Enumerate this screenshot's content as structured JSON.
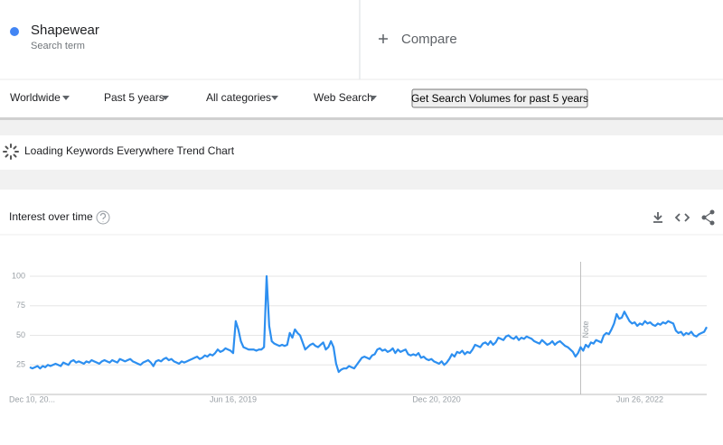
{
  "header": {
    "term_label": "Search term",
    "compare": "Compare"
  },
  "filters": [
    "Worldwide",
    "Past 5 years",
    "All categories",
    "Web Search"
  ],
  "button": "Get Search Volumes for past 5 years",
  "loading": "Loading Keywords Everywhere Trend Chart",
  "card_title": "Interest over time",
  "chart_data": {
    "type": "line",
    "annotation": "Note",
    "categories": [
      "Dec 10, 20...",
      null,
      null,
      null,
      null,
      null,
      null,
      null,
      null,
      null,
      null,
      null,
      null,
      null,
      null,
      null,
      null,
      null,
      null,
      null,
      null,
      null,
      null,
      null,
      null,
      null,
      null,
      null,
      null,
      null,
      null,
      null,
      null,
      null,
      null,
      null,
      null,
      null,
      null,
      null,
      null,
      null,
      null,
      null,
      null,
      null,
      null,
      null,
      null,
      null,
      null,
      null,
      null,
      null,
      null,
      null,
      null,
      null,
      null,
      null,
      null,
      null,
      null,
      null,
      null,
      null,
      null,
      null,
      null,
      null,
      null,
      null,
      null,
      null,
      null,
      null,
      null,
      null,
      null,
      "Jun 16, 2019",
      null,
      null,
      null,
      null,
      null,
      null,
      null,
      null,
      null,
      null,
      null,
      null,
      null,
      null,
      null,
      null,
      null,
      null,
      null,
      null,
      null,
      null,
      null,
      null,
      null,
      null,
      null,
      null,
      null,
      null,
      null,
      null,
      null,
      null,
      null,
      null,
      null,
      null,
      null,
      null,
      null,
      null,
      null,
      null,
      null,
      null,
      null,
      null,
      null,
      null,
      null,
      null,
      null,
      null,
      null,
      null,
      null,
      null,
      null,
      null,
      null,
      null,
      null,
      null,
      null,
      null,
      null,
      null,
      null,
      null,
      null,
      null,
      null,
      null,
      null,
      null,
      null,
      null,
      "Dec 20, 2020",
      null,
      null,
      null,
      null,
      null,
      null,
      null,
      null,
      null,
      null,
      null,
      null,
      null,
      null,
      null,
      null,
      null,
      null,
      null,
      null,
      null,
      null,
      null,
      null,
      null,
      null,
      null,
      null,
      null,
      null,
      null,
      null,
      null,
      null,
      null,
      null,
      null,
      null,
      null,
      null,
      null,
      null,
      null,
      null,
      null,
      null,
      null,
      null,
      null,
      null,
      null,
      null,
      null,
      null,
      null,
      null,
      null,
      null,
      null,
      null,
      null,
      null,
      null,
      null,
      null,
      null,
      null,
      null,
      null,
      null,
      null,
      null,
      null,
      null,
      null,
      null,
      null,
      null,
      "Jun 26, 2022",
      null,
      null,
      null,
      null,
      null,
      null,
      null,
      null,
      null,
      null,
      null,
      null,
      null,
      null,
      null,
      null,
      null,
      null,
      null,
      null,
      null,
      null,
      null,
      null,
      null,
      null
    ],
    "series": [
      {
        "name": "Shapewear",
        "color": "#2d8ff0",
        "values": [
          23,
          22,
          23,
          24,
          22,
          24,
          23,
          25,
          24,
          25,
          26,
          25,
          24,
          27,
          26,
          25,
          28,
          29,
          27,
          28,
          27,
          26,
          28,
          27,
          29,
          28,
          27,
          26,
          28,
          29,
          28,
          27,
          29,
          28,
          27,
          30,
          29,
          28,
          29,
          30,
          28,
          27,
          26,
          25,
          27,
          28,
          29,
          27,
          24,
          28,
          29,
          28,
          30,
          31,
          29,
          30,
          28,
          27,
          26,
          28,
          27,
          28,
          29,
          30,
          31,
          32,
          30,
          31,
          33,
          32,
          34,
          33,
          35,
          38,
          36,
          37,
          39,
          38,
          37,
          35,
          62,
          55,
          45,
          40,
          39,
          38,
          38,
          38,
          37,
          38,
          38,
          40,
          100,
          58,
          45,
          43,
          42,
          41,
          42,
          41,
          42,
          52,
          48,
          55,
          52,
          50,
          44,
          38,
          40,
          42,
          43,
          41,
          40,
          42,
          44,
          38,
          40,
          45,
          40,
          26,
          19,
          21,
          22,
          22,
          24,
          23,
          22,
          25,
          28,
          31,
          32,
          31,
          30,
          33,
          34,
          38,
          39,
          37,
          38,
          36,
          37,
          39,
          35,
          38,
          36,
          37,
          38,
          34,
          33,
          34,
          33,
          35,
          31,
          32,
          30,
          29,
          30,
          28,
          27,
          26,
          28,
          25,
          27,
          30,
          34,
          32,
          36,
          35,
          37,
          34,
          36,
          35,
          38,
          42,
          41,
          40,
          43,
          44,
          42,
          45,
          42,
          44,
          48,
          47,
          46,
          49,
          50,
          48,
          47,
          49,
          46,
          48,
          47,
          49,
          48,
          47,
          45,
          44,
          43,
          46,
          44,
          42,
          43,
          45,
          42,
          44,
          45,
          43,
          41,
          40,
          38,
          36,
          32,
          35,
          40,
          37,
          42,
          40,
          44,
          43,
          46,
          45,
          44,
          50,
          52,
          51,
          55,
          60,
          68,
          64,
          65,
          70,
          66,
          62,
          60,
          61,
          58,
          60,
          59,
          62,
          60,
          61,
          59,
          58,
          60,
          59,
          61,
          60,
          62,
          61,
          60,
          54,
          52,
          53,
          50,
          52,
          51,
          53,
          50,
          49,
          51,
          52,
          53,
          57
        ]
      }
    ],
    "ylim": [
      0,
      100
    ],
    "yticks": [
      25,
      50,
      75,
      100
    ],
    "grid": true
  }
}
